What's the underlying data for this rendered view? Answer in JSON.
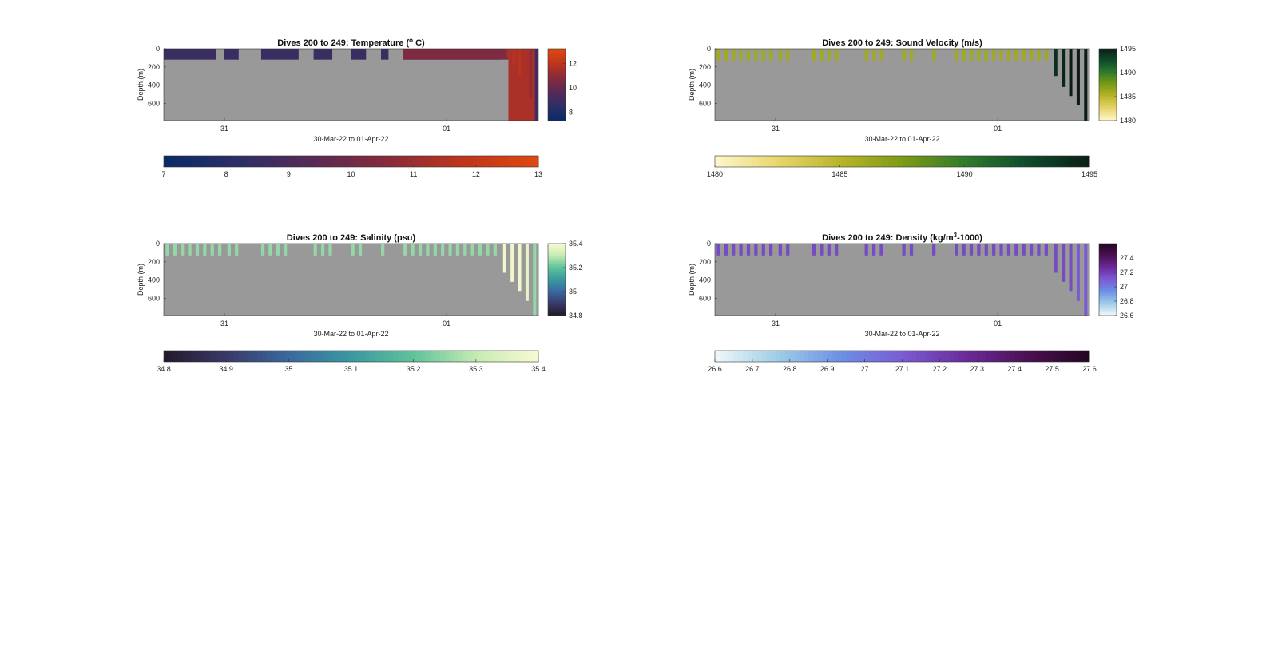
{
  "figure": {
    "background": "#ffffff",
    "plot_background": "#999999"
  },
  "chart_data": [
    {
      "type": "heatmap",
      "id": "temperature",
      "title": "Dives 200 to 249: Temperature (",
      "title_sup": "o",
      "title_post": " C)",
      "xlabel": "30-Mar-22 to 01-Apr-22",
      "ylabel": "Depth (m)",
      "x_ticks": [
        "31",
        "01"
      ],
      "y_ticks": [
        0,
        200,
        400,
        600
      ],
      "ylim": [
        0,
        790
      ],
      "colormap": [
        "#0a2a6a",
        "#2e2e66",
        "#5a2a55",
        "#8a2a3a",
        "#c0361a",
        "#e04a10"
      ],
      "colorbar_right": {
        "ticks": [
          8,
          10,
          12
        ],
        "range": [
          7.3,
          13.2
        ]
      },
      "colorbar_bottom": {
        "ticks": [
          7,
          8,
          9,
          10,
          11,
          12,
          13
        ],
        "range": [
          7,
          13
        ]
      },
      "profile_pattern": "surface_band",
      "surface_value": 8.8,
      "deep_columns": [
        {
          "x": 0.92,
          "depth": 100,
          "value": 11.5
        },
        {
          "x": 0.935,
          "depth": 180,
          "value": 11.8
        },
        {
          "x": 0.95,
          "depth": 300,
          "value": 11.8
        },
        {
          "x": 0.965,
          "depth": 420,
          "value": 11.5
        },
        {
          "x": 0.98,
          "depth": 550,
          "value": 11
        },
        {
          "x": 0.995,
          "depth": 790,
          "value": 9
        }
      ]
    },
    {
      "type": "heatmap",
      "id": "sound_velocity",
      "title": "Dives 200 to 249: Sound Velocity (m/s)",
      "title_sup": "",
      "title_post": "",
      "xlabel": "30-Mar-22 to 01-Apr-22",
      "ylabel": "Depth (m)",
      "x_ticks": [
        "31",
        "01"
      ],
      "y_ticks": [
        0,
        200,
        400,
        600
      ],
      "ylim": [
        0,
        790
      ],
      "colormap": [
        "#fdf6c8",
        "#e7d56a",
        "#b8b428",
        "#7a9a16",
        "#2f7a2c",
        "#0d4a2c",
        "#0c1c14"
      ],
      "colorbar_right": {
        "ticks": [
          1480,
          1485,
          1490,
          1495
        ],
        "range": [
          1480,
          1495
        ]
      },
      "colorbar_bottom": {
        "ticks": [
          1480,
          1485,
          1490,
          1495
        ],
        "range": [
          1480,
          1495
        ]
      },
      "profile_pattern": "bars",
      "surface_value": 1486,
      "deep_columns": [
        {
          "x": 0.91,
          "depth": 300,
          "value": 1494
        },
        {
          "x": 0.93,
          "depth": 420,
          "value": 1494.5
        },
        {
          "x": 0.95,
          "depth": 520,
          "value": 1495
        },
        {
          "x": 0.97,
          "depth": 620,
          "value": 1495
        },
        {
          "x": 0.99,
          "depth": 790,
          "value": 1495
        }
      ]
    },
    {
      "type": "heatmap",
      "id": "salinity",
      "title": "Dives 200 to 249: Salinity (psu)",
      "title_sup": "",
      "title_post": "",
      "xlabel": "30-Mar-22 to 01-Apr-22",
      "ylabel": "Depth (m)",
      "x_ticks": [
        "31",
        "01"
      ],
      "y_ticks": [
        0,
        200,
        400,
        600
      ],
      "ylim": [
        0,
        790
      ],
      "colormap": [
        "#241a2e",
        "#3a3a6a",
        "#3a6aa0",
        "#3a9aa0",
        "#62c49a",
        "#c8ecb4",
        "#fafad2"
      ],
      "colorbar_right": {
        "ticks": [
          34.8,
          35,
          35.2,
          35.4
        ],
        "range": [
          34.8,
          35.4
        ]
      },
      "colorbar_bottom": {
        "ticks": [
          34.8,
          34.9,
          35,
          35.1,
          35.2,
          35.3,
          35.4
        ],
        "range": [
          34.8,
          35.4
        ]
      },
      "profile_pattern": "bars",
      "surface_value": 35.25,
      "deep_columns": [
        {
          "x": 0.91,
          "depth": 320,
          "value": 35.38
        },
        {
          "x": 0.93,
          "depth": 420,
          "value": 35.38
        },
        {
          "x": 0.95,
          "depth": 520,
          "value": 35.38
        },
        {
          "x": 0.97,
          "depth": 630,
          "value": 35.36
        },
        {
          "x": 0.99,
          "depth": 790,
          "value": 35.25
        }
      ]
    },
    {
      "type": "heatmap",
      "id": "density",
      "title": "Dives 200 to 249: Density (kg/m",
      "title_sup": "3",
      "title_post": "-1000)",
      "xlabel": "30-Mar-22 to 01-Apr-22",
      "ylabel": "Depth (m)",
      "x_ticks": [
        "31",
        "01"
      ],
      "y_ticks": [
        0,
        200,
        400,
        600
      ],
      "ylim": [
        0,
        790
      ],
      "colormap": [
        "#eef6fa",
        "#9ccce6",
        "#6c8ee6",
        "#7a5ad2",
        "#6a2a9a",
        "#4a1050",
        "#22061e"
      ],
      "colorbar_right": {
        "ticks": [
          26.6,
          26.8,
          27,
          27.2,
          27.4
        ],
        "range": [
          26.6,
          27.6
        ]
      },
      "colorbar_bottom": {
        "ticks": [
          26.6,
          26.7,
          26.8,
          26.9,
          27,
          27.1,
          27.2,
          27.3,
          27.4,
          27.5,
          27.6
        ],
        "range": [
          26.6,
          27.6
        ]
      },
      "profile_pattern": "bars",
      "surface_value": 27.15,
      "deep_columns": [
        {
          "x": 0.91,
          "depth": 320,
          "value": 27.15
        },
        {
          "x": 0.93,
          "depth": 420,
          "value": 27.15
        },
        {
          "x": 0.95,
          "depth": 520,
          "value": 27.15
        },
        {
          "x": 0.97,
          "depth": 630,
          "value": 27.1
        },
        {
          "x": 0.99,
          "depth": 790,
          "value": 27.1
        }
      ]
    }
  ]
}
